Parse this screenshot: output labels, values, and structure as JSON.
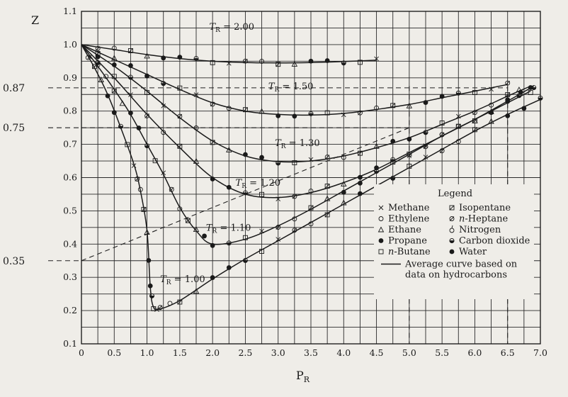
{
  "chart_data": {
    "type": "line",
    "title": "",
    "xlabel": "P_R",
    "ylabel": "Z",
    "xlim": [
      0,
      7.0
    ],
    "ylim": [
      0.1,
      1.1
    ],
    "grid": true,
    "x_ticks": [
      "0",
      "0.5",
      "1.0",
      "1.5",
      "2.0",
      "2.5",
      "3.0",
      "3.5",
      "4.0",
      "4.5",
      "5.0",
      "5.5",
      "6.0",
      "6.5",
      "7.0"
    ],
    "y_ticks": [
      "0.1",
      "0.2",
      "0.3",
      "0.4",
      "0.5",
      "0.6",
      "0.7",
      "0.8",
      "0.9",
      "1.0",
      "1.1"
    ],
    "series": [
      {
        "name": "T_R = 2.00",
        "label": "= 2.00",
        "label_at": [
          1.95,
          1.045
        ],
        "x": [
          0,
          0.5,
          1.0,
          1.5,
          2.0,
          2.5,
          3.0,
          3.5,
          4.0,
          4.5
        ],
        "y": [
          1.0,
          0.985,
          0.97,
          0.958,
          0.95,
          0.946,
          0.945,
          0.946,
          0.949,
          0.953
        ]
      },
      {
        "name": "T_R = 1.50",
        "label": "= 1.50",
        "label_at": [
          2.85,
          0.865
        ],
        "x": [
          0,
          0.5,
          1.0,
          1.5,
          2.0,
          2.5,
          3.0,
          3.5,
          4.0,
          4.5,
          5.0,
          5.5,
          6.0,
          6.5
        ],
        "y": [
          1.0,
          0.955,
          0.91,
          0.865,
          0.825,
          0.8,
          0.79,
          0.788,
          0.793,
          0.805,
          0.82,
          0.84,
          0.86,
          0.88
        ]
      },
      {
        "name": "T_R = 1.30",
        "label": "= 1.30",
        "label_at": [
          2.95,
          0.695
        ],
        "x": [
          0,
          0.5,
          1.0,
          1.5,
          2.0,
          2.5,
          3.0,
          3.5,
          4.0,
          4.5,
          5.0,
          5.5,
          6.0,
          6.5,
          6.85
        ],
        "y": [
          1.0,
          0.935,
          0.86,
          0.78,
          0.71,
          0.665,
          0.648,
          0.65,
          0.665,
          0.69,
          0.72,
          0.76,
          0.8,
          0.845,
          0.875
        ]
      },
      {
        "name": "T_R = 1.20",
        "label": "= 1.20",
        "label_at": [
          2.35,
          0.575
        ],
        "x": [
          0,
          0.5,
          1.0,
          1.5,
          2.0,
          2.5,
          3.0,
          3.5,
          4.0,
          4.5,
          5.0,
          5.5,
          6.0,
          6.5,
          6.9
        ],
        "y": [
          1.0,
          0.9,
          0.79,
          0.69,
          0.6,
          0.55,
          0.54,
          0.555,
          0.585,
          0.625,
          0.675,
          0.725,
          0.775,
          0.83,
          0.875
        ]
      },
      {
        "name": "T_R = 1.10",
        "label": "= 1.10",
        "label_at": [
          1.9,
          0.44
        ],
        "x": [
          0,
          0.25,
          0.5,
          0.75,
          1.0,
          1.25,
          1.5,
          1.75,
          2.0,
          2.5,
          3.0,
          3.5,
          4.0,
          4.5,
          5.0,
          5.5,
          6.0,
          6.5,
          6.85
        ],
        "y": [
          1.0,
          0.935,
          0.865,
          0.79,
          0.7,
          0.61,
          0.51,
          0.44,
          0.4,
          0.415,
          0.455,
          0.505,
          0.56,
          0.615,
          0.67,
          0.725,
          0.775,
          0.825,
          0.86
        ]
      },
      {
        "name": "T_R = 1.00",
        "label": "= 1.00",
        "label_at": [
          1.2,
          0.285
        ],
        "x": [
          0,
          0.2,
          0.4,
          0.6,
          0.8,
          0.9,
          1.0,
          1.05,
          1.1,
          1.2,
          1.5,
          2.0,
          2.5,
          3.0,
          3.5,
          4.0,
          4.5,
          5.0,
          5.5,
          6.0,
          6.5,
          7.0
        ],
        "y": [
          1.0,
          0.93,
          0.85,
          0.75,
          0.64,
          0.56,
          0.44,
          0.27,
          0.21,
          0.205,
          0.23,
          0.295,
          0.355,
          0.41,
          0.465,
          0.52,
          0.575,
          0.63,
          0.685,
          0.74,
          0.79,
          0.835
        ]
      }
    ],
    "reference_lines": [
      {
        "label": "0.87",
        "y": 0.87,
        "x_to": 6.5
      },
      {
        "label": "0.75",
        "y": 0.75,
        "x_to": 5.0
      },
      {
        "label": "0.35",
        "y": 0.35,
        "x_to": 0,
        "x2": 5.0,
        "y2": 0.75
      }
    ],
    "vertical_refs": [
      5.0,
      6.5
    ],
    "legend": {
      "title": "Legend",
      "placement": "bottom-right",
      "entries": [
        {
          "marker": "x",
          "text": "Methane"
        },
        {
          "marker": "square-slash",
          "text": "Isopentane"
        },
        {
          "marker": "circle",
          "text": "Ethylene"
        },
        {
          "marker": "circle-slash",
          "text": "n-Heptane"
        },
        {
          "marker": "triangle",
          "text": "Ethane"
        },
        {
          "marker": "circle-stem",
          "text": "Nitrogen"
        },
        {
          "marker": "circle-dot-filled",
          "text": "Propane"
        },
        {
          "marker": "circle-half",
          "text": "Carbon dioxide"
        },
        {
          "marker": "square",
          "text": "n-Butane"
        },
        {
          "marker": "circle-filled",
          "text": "Water"
        }
      ],
      "line_entry": "Average curve based on",
      "line_entry_2": "data on hydrocarbons"
    },
    "T_R_symbol": "T",
    "T_R_sub": "R"
  }
}
